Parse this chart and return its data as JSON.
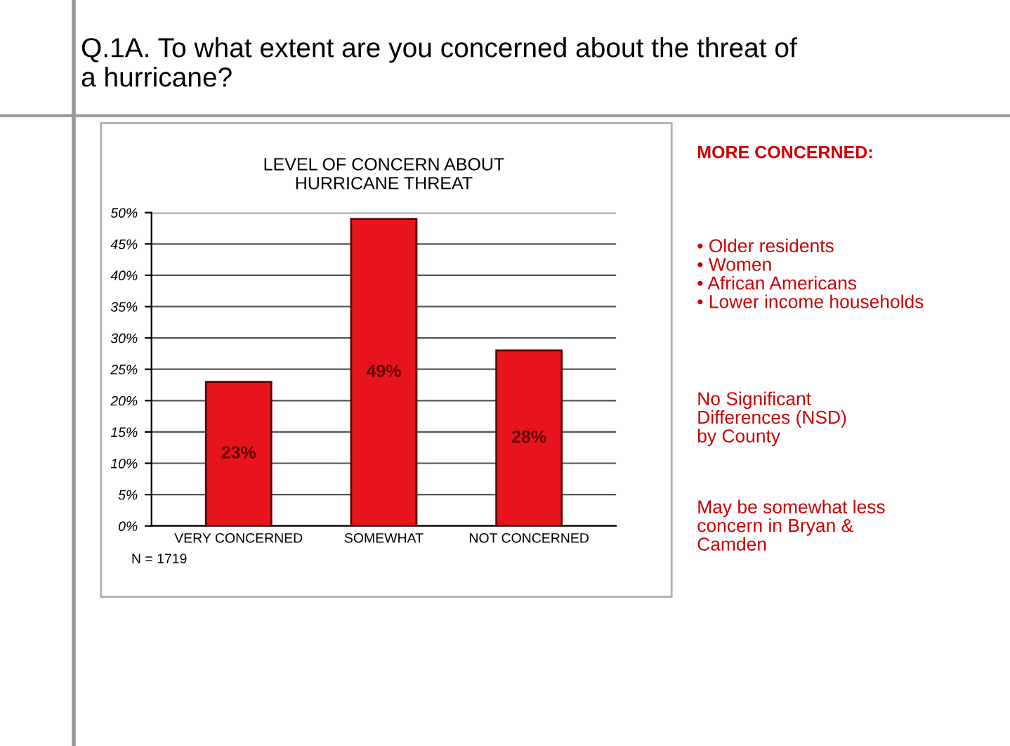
{
  "chart_data": {
    "type": "bar",
    "title": "Q.1A. To what extent are you concerned about the threat of\na hurricane?",
    "subtitle": "LEVEL OF CONCERN ABOUT\nHURRICANE THREAT",
    "categories": [
      "VERY CONCERNED",
      "SOMEWHAT",
      "NOT CONCERNED"
    ],
    "values": [
      23,
      49,
      28
    ],
    "value_labels": [
      "23%",
      "49%",
      "28%"
    ],
    "color": "#e8141c",
    "ylim": [
      0,
      50
    ],
    "yticks": [
      {
        "value": 0,
        "label": "0%"
      },
      {
        "value": 5,
        "label": "5%"
      },
      {
        "value": 10,
        "label": "10%"
      },
      {
        "value": 15,
        "label": "15%"
      },
      {
        "value": 20,
        "label": "20%"
      },
      {
        "value": 25,
        "label": "25%"
      },
      {
        "value": 30,
        "label": "30%"
      },
      {
        "value": 35,
        "label": "35%"
      },
      {
        "value": 40,
        "label": "40%"
      },
      {
        "value": 45,
        "label": "45%"
      },
      {
        "value": 50,
        "label": "50%"
      }
    ],
    "grid": "y",
    "annotations": [
      "N = 1719",
      "MORE CONCERNED:",
      "• Older residents\n• Women\n• African Americans\n• Lower income households",
      "No Significant\nDifferences (NSD)\nby County",
      "May be somewhat less\nconcern in Bryan &\nCamden"
    ]
  }
}
